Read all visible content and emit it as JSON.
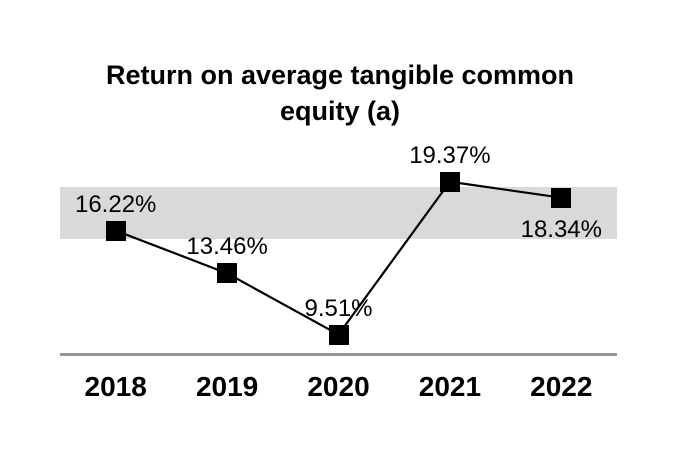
{
  "chart_data": {
    "type": "line",
    "title": "Return on average tangible common equity (a)",
    "categories": [
      "2018",
      "2019",
      "2020",
      "2021",
      "2022"
    ],
    "values": [
      16.22,
      13.46,
      9.51,
      19.37,
      18.34
    ],
    "point_labels": [
      "16.22%",
      "13.46%",
      "9.51%",
      "19.37%",
      "18.34%"
    ],
    "point_label_positions": [
      "above",
      "above",
      "above",
      "above",
      "below"
    ],
    "xlabel": "",
    "ylabel": "",
    "ylim": [
      8.3,
      22.1
    ],
    "grid": false,
    "legend": false,
    "marker_shape": "square",
    "line_color": "#000000",
    "marker_color": "#000000",
    "label_color": "#000000",
    "axis_line_color": "#969696",
    "highlight_band": {
      "from": 15.7,
      "to": 19.0,
      "color": "#d9d9d9"
    }
  }
}
